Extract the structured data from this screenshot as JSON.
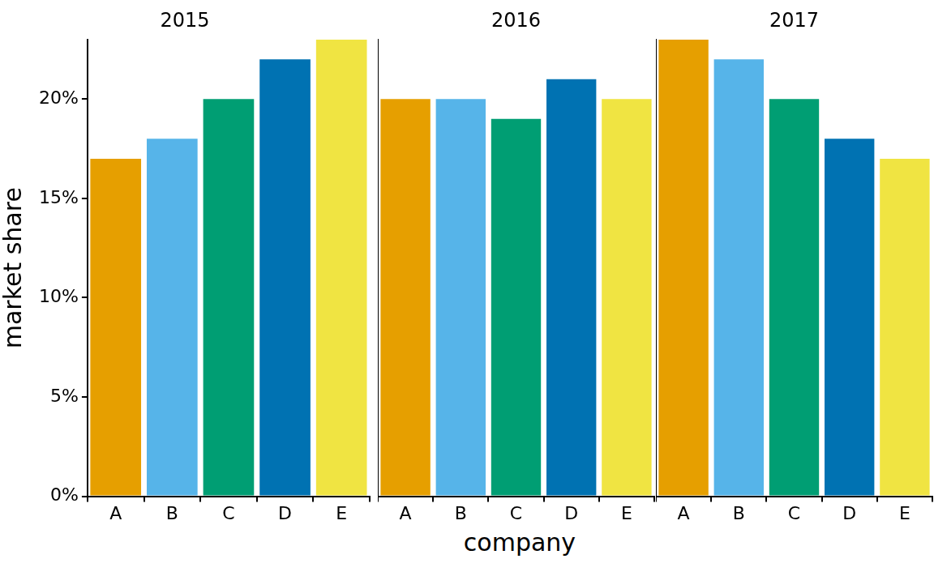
{
  "chart_data": [
    {
      "type": "bar",
      "title": "2015",
      "y_label": "market share",
      "categories": [
        "A",
        "B",
        "C",
        "D",
        "E"
      ],
      "values": [
        17,
        18,
        20,
        22,
        23
      ],
      "colors": [
        "#E69F00",
        "#56B4E9",
        "#009E73",
        "#0072B2",
        "#F0E442"
      ],
      "ylim": [
        0,
        23
      ],
      "yticks": [
        {
          "value": 0,
          "label": "0%"
        },
        {
          "value": 5,
          "label": "5%"
        },
        {
          "value": 10,
          "label": "10%"
        },
        {
          "value": 15,
          "label": "15%"
        },
        {
          "value": 20,
          "label": "20%"
        }
      ],
      "grid": false
    },
    {
      "type": "bar",
      "title": "2016",
      "x_label": "company",
      "categories": [
        "A",
        "B",
        "C",
        "D",
        "E"
      ],
      "values": [
        20,
        20,
        19,
        21,
        20
      ],
      "colors": [
        "#E69F00",
        "#56B4E9",
        "#009E73",
        "#0072B2",
        "#F0E442"
      ],
      "ylim": [
        0,
        23
      ],
      "tick_labels": "x",
      "grid": false
    },
    {
      "type": "bar",
      "title": "2017",
      "categories": [
        "A",
        "B",
        "C",
        "D",
        "E"
      ],
      "values": [
        23,
        22,
        20,
        18,
        17
      ],
      "colors": [
        "#E69F00",
        "#56B4E9",
        "#009E73",
        "#0072B2",
        "#F0E442"
      ],
      "ylim": [
        0,
        23
      ],
      "tick_labels": "x",
      "grid": false
    }
  ]
}
